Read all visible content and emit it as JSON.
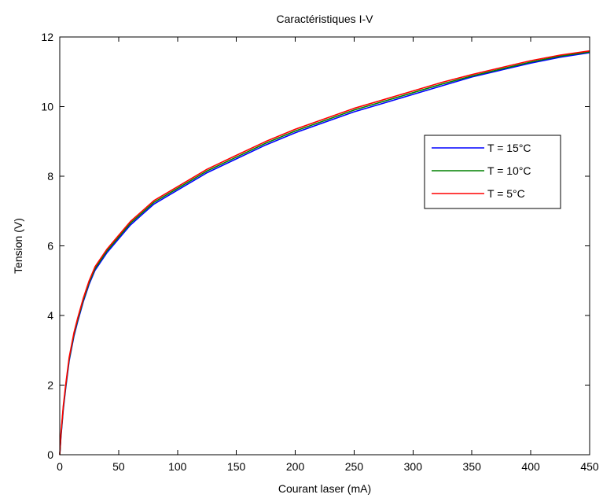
{
  "chart_data": {
    "type": "line",
    "title": "Caractéristiques I-V",
    "xlabel": "Courant laser (mA)",
    "ylabel": "Tension (V)",
    "xlim": [
      0,
      450
    ],
    "ylim": [
      0,
      12
    ],
    "xticks": [
      0,
      50,
      100,
      150,
      200,
      250,
      300,
      350,
      400,
      450
    ],
    "yticks": [
      0,
      2,
      4,
      6,
      8,
      10,
      12
    ],
    "grid": false,
    "legend_position": "top-right",
    "x": [
      0,
      1,
      2,
      3,
      5,
      8,
      12,
      15,
      20,
      25,
      30,
      40,
      50,
      60,
      70,
      80,
      100,
      125,
      150,
      175,
      200,
      225,
      250,
      275,
      300,
      325,
      350,
      375,
      400,
      425,
      450
    ],
    "series": [
      {
        "name": "T = 15°C",
        "color": "#0000ff",
        "values": [
          0.0,
          0.5,
          0.9,
          1.3,
          1.9,
          2.7,
          3.4,
          3.8,
          4.4,
          4.9,
          5.3,
          5.8,
          6.2,
          6.6,
          6.9,
          7.2,
          7.6,
          8.1,
          8.5,
          8.9,
          9.25,
          9.55,
          9.85,
          10.1,
          10.35,
          10.6,
          10.85,
          11.05,
          11.25,
          11.42,
          11.55
        ]
      },
      {
        "name": "T = 10°C",
        "color": "#008000",
        "values": [
          0.0,
          0.55,
          0.95,
          1.35,
          1.95,
          2.75,
          3.45,
          3.85,
          4.45,
          4.95,
          5.35,
          5.85,
          6.25,
          6.65,
          6.95,
          7.25,
          7.65,
          8.15,
          8.55,
          8.95,
          9.3,
          9.6,
          9.9,
          10.15,
          10.4,
          10.65,
          10.88,
          11.08,
          11.28,
          11.45,
          11.57
        ]
      },
      {
        "name": "T = 5°C",
        "color": "#ff0000",
        "values": [
          0.0,
          0.6,
          1.0,
          1.4,
          2.0,
          2.8,
          3.5,
          3.9,
          4.5,
          5.0,
          5.4,
          5.9,
          6.3,
          6.7,
          7.0,
          7.3,
          7.7,
          8.2,
          8.6,
          9.0,
          9.35,
          9.65,
          9.95,
          10.2,
          10.45,
          10.7,
          10.92,
          11.12,
          11.32,
          11.48,
          11.6
        ]
      }
    ]
  }
}
